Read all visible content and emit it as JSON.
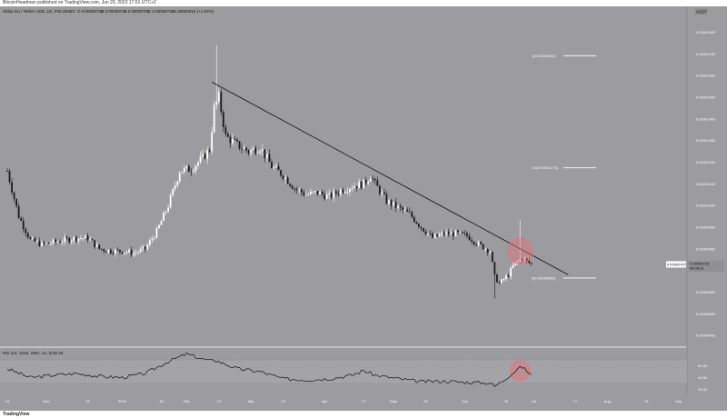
{
  "header": {
    "publisher": "BitcoinHeadman published on TradingView.com, Jun 29, 2023 17:51 UTC+2"
  },
  "footer": {
    "logo": "TradingView"
  },
  "chart_data": {
    "type": "candlestick",
    "title": "Shiba Inu / Tether USD, 1D, POLONIEX",
    "ohlc": {
      "o": "O 0.00000722",
      "h": "H 0.00000728",
      "l": "L 0.00000705",
      "c": "C 0.00000728",
      "chg": "+0.00000016 (+1.67%)"
    },
    "currency": "USDT",
    "price_axis": {
      "ticks": [
        "0.00001800",
        "0.00001700",
        "0.00001600",
        "0.00001500",
        "0.00001400",
        "0.00001300",
        "0.00001200",
        "0.00001100",
        "0.00001000",
        "0.00000900",
        "0.00000800",
        "0.00000700",
        "0.00000600",
        "0.00000500",
        "0.00000400"
      ],
      "tick_values": [
        1.8e-05,
        1.7e-05,
        1.6e-05,
        1.5e-05,
        1.4e-05,
        1.3e-05,
        1.2e-05,
        1.1e-05,
        1e-05,
        9e-06,
        8e-06,
        7e-06,
        6e-06,
        5e-06,
        4e-06
      ],
      "ylim": [
        3.5e-06,
        1.92e-05
      ]
    },
    "time_axis": {
      "ticks": [
        "14",
        "Dec",
        "19",
        "2023",
        "16",
        "Feb",
        "13",
        "Mar",
        "13",
        "Apr",
        "17",
        "May",
        "15",
        "Jun",
        "19",
        "Jul",
        "17",
        "Aug",
        "14",
        "Sep"
      ],
      "tick_index": [
        0,
        17,
        35,
        50,
        67,
        78,
        92,
        106,
        120,
        138,
        155,
        168,
        182,
        199,
        217,
        229,
        247,
        261,
        278,
        292
      ]
    },
    "last_price": "0.00000728",
    "countdown": "06:08:31",
    "crosshair_price": "0.00000707",
    "fib_levels": [
      {
        "label": "1(0.00001692)",
        "value": 1.692e-05
      },
      {
        "label": "0.5(0.00001174)",
        "value": 1.174e-05
      },
      {
        "label": "0(0.00000665)",
        "value": 6.65e-06
      }
    ],
    "trendline": {
      "start_index": 89,
      "start_value": 1.57e-05,
      "end_index": 244,
      "end_value": 6.8e-06
    },
    "highlight_index": 223,
    "rsi": {
      "label": "RSI (14, close, SMA, 14, 2)",
      "value_label": "45.46",
      "ticks": [
        "60.00",
        "40.00",
        "20.00"
      ],
      "tick_values": [
        60,
        40,
        20
      ],
      "ylim": [
        10,
        90
      ]
    },
    "anchors": {
      "close": [
        [
          0,
          1.16e-05
        ],
        [
          5,
          9.5e-06
        ],
        [
          10,
          8.4e-06
        ],
        [
          15,
          8.2e-06
        ],
        [
          20,
          8.3e-06
        ],
        [
          25,
          8.4e-06
        ],
        [
          30,
          8.5e-06
        ],
        [
          35,
          8.5e-06
        ],
        [
          40,
          8e-06
        ],
        [
          45,
          7.9e-06
        ],
        [
          50,
          7.9e-06
        ],
        [
          55,
          7.8e-06
        ],
        [
          60,
          8e-06
        ],
        [
          65,
          8.8e-06
        ],
        [
          70,
          1e-05
        ],
        [
          75,
          1.16e-05
        ],
        [
          80,
          1.17e-05
        ],
        [
          85,
          1.22e-05
        ],
        [
          88,
          1.26e-05
        ],
        [
          90,
          1.45e-05
        ],
        [
          92,
          1.5e-05
        ],
        [
          95,
          1.32e-05
        ],
        [
          100,
          1.28e-05
        ],
        [
          105,
          1.25e-05
        ],
        [
          110,
          1.27e-05
        ],
        [
          115,
          1.18e-05
        ],
        [
          120,
          1.14e-05
        ],
        [
          125,
          1.08e-05
        ],
        [
          130,
          1.05e-05
        ],
        [
          135,
          1.06e-05
        ],
        [
          140,
          1.04e-05
        ],
        [
          145,
          1.07e-05
        ],
        [
          150,
          1.09e-05
        ],
        [
          155,
          1.1e-05
        ],
        [
          158,
          1.14e-05
        ],
        [
          160,
          1.1e-05
        ],
        [
          165,
          1.02e-05
        ],
        [
          170,
          9.9e-06
        ],
        [
          175,
          9.6e-06
        ],
        [
          180,
          9e-06
        ],
        [
          185,
          8.5e-06
        ],
        [
          190,
          8.7e-06
        ],
        [
          195,
          8.7e-06
        ],
        [
          200,
          8.6e-06
        ],
        [
          205,
          8.2e-06
        ],
        [
          210,
          7.9e-06
        ],
        [
          212,
          6.7e-06
        ],
        [
          214,
          6.4e-06
        ],
        [
          216,
          6.6e-06
        ],
        [
          218,
          6.8e-06
        ],
        [
          220,
          7.2e-06
        ],
        [
          222,
          7.4e-06
        ],
        [
          224,
          7.6e-06
        ],
        [
          226,
          7.4e-06
        ],
        [
          228,
          7.3e-06
        ]
      ],
      "rsi": [
        [
          0,
          55
        ],
        [
          10,
          40
        ],
        [
          20,
          44
        ],
        [
          30,
          47
        ],
        [
          40,
          42
        ],
        [
          50,
          40
        ],
        [
          60,
          47
        ],
        [
          70,
          67
        ],
        [
          78,
          80
        ],
        [
          88,
          68
        ],
        [
          90,
          70
        ],
        [
          100,
          55
        ],
        [
          110,
          50
        ],
        [
          120,
          38
        ],
        [
          130,
          36
        ],
        [
          140,
          38
        ],
        [
          150,
          44
        ],
        [
          155,
          52
        ],
        [
          160,
          44
        ],
        [
          170,
          38
        ],
        [
          180,
          33
        ],
        [
          190,
          34
        ],
        [
          200,
          32
        ],
        [
          210,
          31
        ],
        [
          212,
          25
        ],
        [
          216,
          36
        ],
        [
          220,
          48
        ],
        [
          222,
          55
        ],
        [
          224,
          58
        ],
        [
          226,
          51
        ],
        [
          228,
          45
        ]
      ]
    },
    "spikes": [
      {
        "index": 91,
        "high": 1.74e-05
      },
      {
        "index": 212,
        "low": 5.7e-06
      },
      {
        "index": 223,
        "high": 9.3e-06
      }
    ],
    "colors": {
      "background": "#9c9ca0",
      "up": "#ffffff",
      "down": "#1a1a1a",
      "trendline": "#111111",
      "fib": "#ffffff",
      "highlight": "#e8707a",
      "rsi_line": "#111111",
      "rsi_band": "#a9a9ad"
    }
  }
}
